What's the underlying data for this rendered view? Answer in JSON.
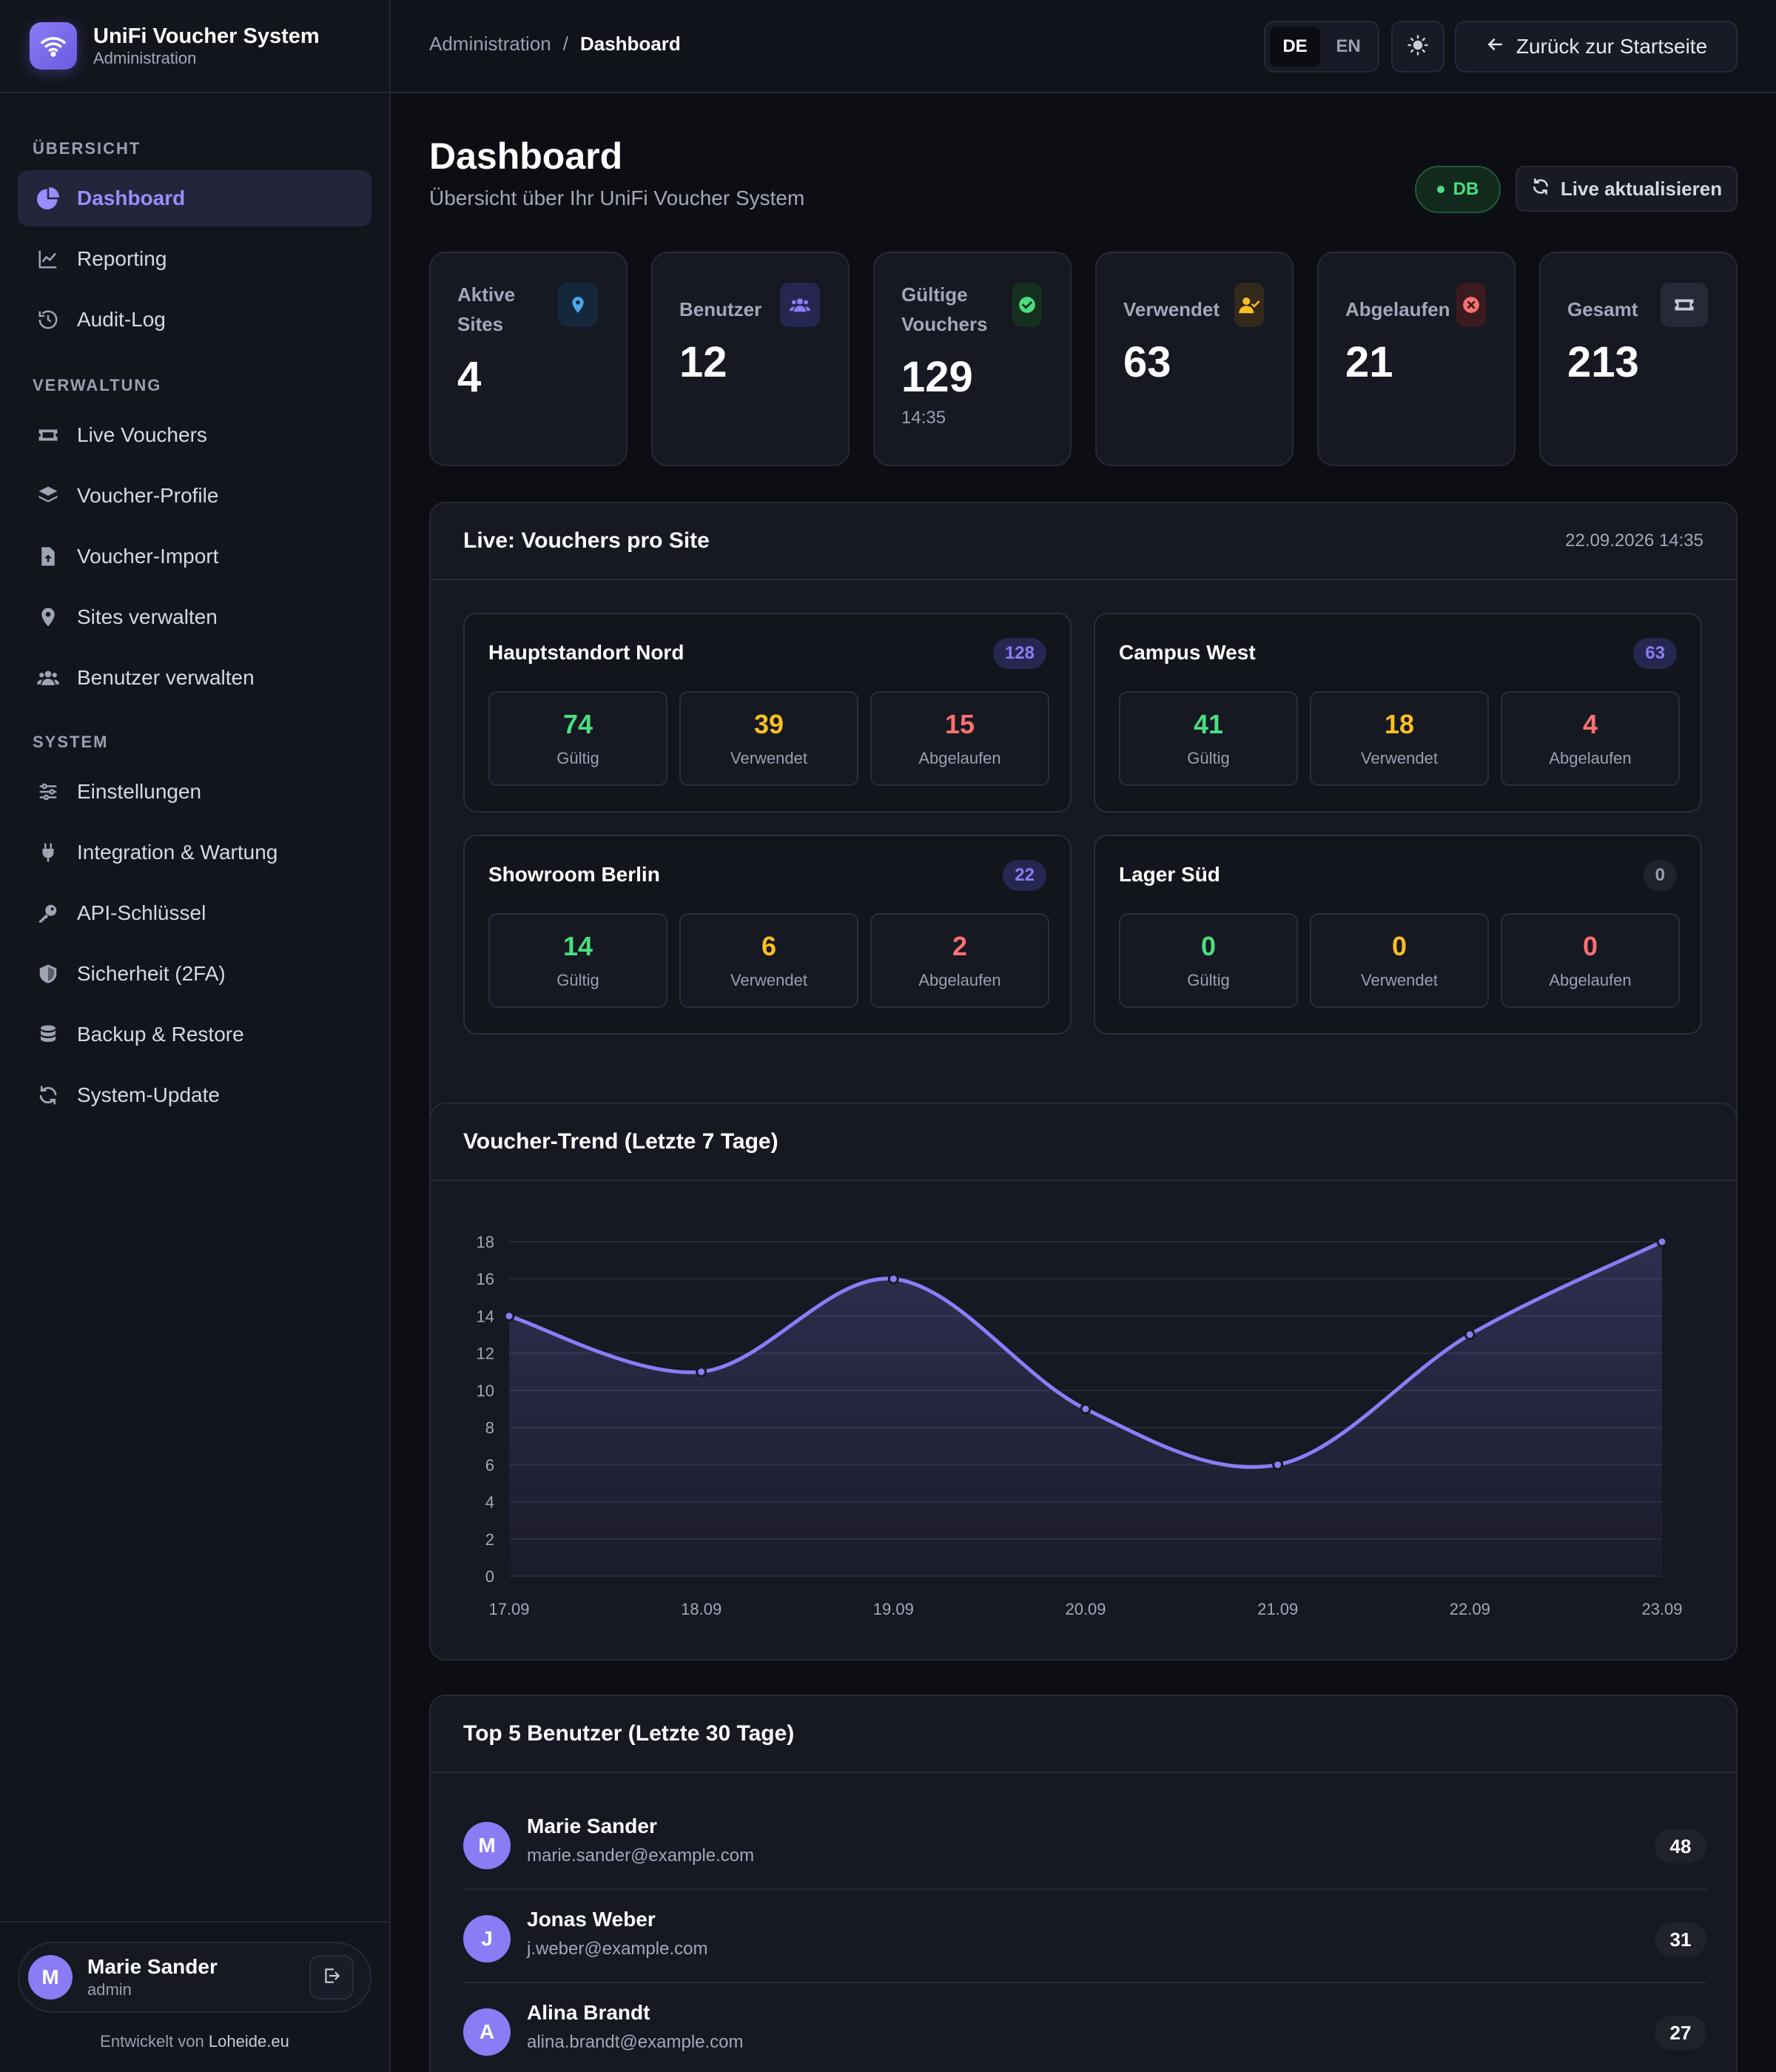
{
  "app": {
    "title": "UniFi Voucher System",
    "subtitle": "Administration"
  },
  "nav": {
    "sections": [
      {
        "title": "ÜBERSICHT",
        "items": [
          "Dashboard",
          "Reporting",
          "Audit-Log"
        ]
      },
      {
        "title": "VERWALTUNG",
        "items": [
          "Live Vouchers",
          "Voucher-Profile",
          "Voucher-Import",
          "Sites verwalten",
          "Benutzer verwalten"
        ]
      },
      {
        "title": "SYSTEM",
        "items": [
          "Einstellungen",
          "Integration & Wartung",
          "API-Schlüssel",
          "Sicherheit (2FA)",
          "Backup & Restore",
          "System-Update"
        ]
      }
    ],
    "active": "Dashboard"
  },
  "user": {
    "initial": "M",
    "name": "Marie Sander",
    "role": "admin"
  },
  "credit": {
    "prefix": "Entwickelt von",
    "link": "Loheide.eu"
  },
  "topbar": {
    "breadcrumb": [
      "Administration",
      "Dashboard"
    ],
    "lang": [
      "DE",
      "EN"
    ],
    "active_lang": "DE",
    "back_label": "Zurück zur Startseite"
  },
  "page": {
    "title": "Dashboard",
    "subtitle": "Übersicht über Ihr UniFi Voucher System",
    "db_badge": "DB",
    "live_button": "Live aktualisieren"
  },
  "stats": [
    {
      "label": "Aktive Sites",
      "value": "4",
      "icon": "map-pin-icon",
      "color": "#4aa8e8",
      "bg": "#15273a"
    },
    {
      "label": "Benutzer",
      "value": "12",
      "icon": "users-icon",
      "color": "#8b7cf6",
      "bg": "#262751"
    },
    {
      "label": "Gültige Vouchers",
      "value": "129",
      "sub": "14:35",
      "icon": "check-circle-icon",
      "color": "#4ade80",
      "bg": "#15301f"
    },
    {
      "label": "Verwendet",
      "value": "63",
      "icon": "user-check-icon",
      "color": "#fbbf24",
      "bg": "#33291a"
    },
    {
      "label": "Abgelaufen",
      "value": "21",
      "icon": "x-circle-icon",
      "color": "#f87171",
      "bg": "#3a1b1f"
    },
    {
      "label": "Gesamt",
      "value": "213",
      "icon": "ticket-icon",
      "color": "#c9ccd6",
      "bg": "#262a37"
    }
  ],
  "live": {
    "title": "Live: Vouchers pro Site",
    "timestamp": "22.09.2026 14:35",
    "metric_labels": [
      "Gültig",
      "Verwendet",
      "Abgelaufen"
    ],
    "sites": [
      {
        "name": "Hauptstandort Nord",
        "count": "128",
        "values": [
          "74",
          "39",
          "15"
        ]
      },
      {
        "name": "Campus West",
        "count": "63",
        "values": [
          "41",
          "18",
          "4"
        ]
      },
      {
        "name": "Showroom Berlin",
        "count": "22",
        "values": [
          "14",
          "6",
          "2"
        ]
      },
      {
        "name": "Lager Süd",
        "count": "0",
        "values": [
          "0",
          "0",
          "0"
        ]
      }
    ]
  },
  "trend": {
    "title": "Voucher-Trend (Letzte 7 Tage)"
  },
  "chart_data": {
    "type": "area",
    "categories": [
      "17.09",
      "18.09",
      "19.09",
      "20.09",
      "21.09",
      "22.09",
      "23.09"
    ],
    "values": [
      14,
      11,
      16,
      9,
      6,
      13,
      18
    ],
    "ylim": [
      0,
      18
    ],
    "yticks": [
      0,
      2,
      4,
      6,
      8,
      10,
      12,
      14,
      16,
      18
    ],
    "grid": true,
    "color": "#8b7cf6"
  },
  "top_users": {
    "title": "Top 5 Benutzer (Letzte 30 Tage)",
    "rows": [
      {
        "initial": "M",
        "name": "Marie Sander",
        "email": "marie.sander@example.com",
        "count": "48"
      },
      {
        "initial": "J",
        "name": "Jonas Weber",
        "email": "j.weber@example.com",
        "count": "31"
      },
      {
        "initial": "A",
        "name": "Alina Brandt",
        "email": "alina.brandt@example.com",
        "count": "27"
      }
    ]
  }
}
